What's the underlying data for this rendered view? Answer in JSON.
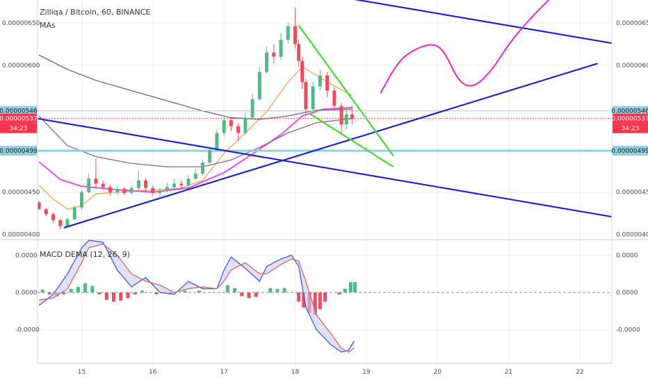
{
  "header": {
    "title": "Zilliqa / Bitcoin, 60, BINANCE",
    "ma_label": "MAs",
    "macd_label": "MACD DEMA (12, 26, 9)"
  },
  "colors": {
    "up": "#53b987",
    "down": "#eb4d5c",
    "trend": "#1d24c9",
    "wedge": "#3ddc2b",
    "projection": "#e81fd2",
    "hline": "#8fd0e3",
    "price_red": "#f2364d",
    "ma_orange": "#f4a04a",
    "ma_pink": "#e84de0",
    "ma_purple": "#8e5ba6",
    "ma_gray": "#666666",
    "macd_line": "#3f5bd8",
    "signal_line": "#e06060"
  },
  "price_axis": {
    "ticks": [
      "0.00000650",
      "0.00000600",
      "0.00000450",
      "0.00000400"
    ],
    "tick_values": [
      6.5e-06,
      6e-06,
      4.5e-06,
      4e-06
    ],
    "range": [
      3.94e-06,
      6.77e-06
    ]
  },
  "labels": {
    "price_546": "0.00000546",
    "price_537": "0.00000537",
    "countdown": "34:23",
    "price_499": "0.00000499"
  },
  "macd_axis": {
    "ticks": [
      "0.0000",
      "0.0000",
      "-0.0000"
    ],
    "tick_values": [
      1,
      0,
      -1
    ],
    "range": [
      -1.9,
      1.4
    ]
  },
  "x_axis": {
    "ticks": [
      "15",
      "16",
      "17",
      "18",
      "19",
      "20",
      "21",
      "22"
    ],
    "tick_values": [
      15,
      16,
      17,
      18,
      19,
      20,
      21,
      22
    ],
    "range": [
      14.38,
      22.45
    ]
  },
  "chart_data": {
    "type": "candlestick",
    "title": "Zilliqa / Bitcoin, 60, BINANCE",
    "x_unit": "day",
    "y_range": [
      3.94e-06,
      6.77e-06
    ],
    "candles": [
      [
        14.4,
        4.38,
        4.3,
        4.4,
        4.29
      ],
      [
        14.5,
        4.3,
        4.24,
        4.32,
        4.22
      ],
      [
        14.6,
        4.24,
        4.17,
        4.26,
        4.14
      ],
      [
        14.7,
        4.17,
        4.1,
        4.19,
        4.06
      ],
      [
        14.8,
        4.1,
        4.18,
        4.2,
        4.08
      ],
      [
        14.9,
        4.18,
        4.32,
        4.34,
        4.16
      ],
      [
        15.0,
        4.32,
        4.5,
        4.53,
        4.3
      ],
      [
        15.1,
        4.5,
        4.66,
        4.72,
        4.48
      ],
      [
        15.2,
        4.66,
        4.6,
        4.9,
        4.56
      ],
      [
        15.3,
        4.6,
        4.56,
        4.64,
        4.52
      ],
      [
        15.4,
        4.56,
        4.5,
        4.59,
        4.46
      ],
      [
        15.5,
        4.5,
        4.54,
        4.57,
        4.47
      ],
      [
        15.6,
        4.54,
        4.49,
        4.56,
        4.46
      ],
      [
        15.7,
        4.49,
        4.55,
        4.58,
        4.47
      ],
      [
        15.8,
        4.55,
        4.64,
        4.75,
        4.53
      ],
      [
        15.9,
        4.64,
        4.55,
        4.67,
        4.5
      ],
      [
        16.0,
        4.55,
        4.49,
        4.58,
        4.46
      ],
      [
        16.1,
        4.49,
        4.52,
        4.55,
        4.45
      ],
      [
        16.2,
        4.52,
        4.56,
        4.61,
        4.5
      ],
      [
        16.3,
        4.56,
        4.6,
        4.66,
        4.53
      ],
      [
        16.4,
        4.6,
        4.58,
        4.64,
        4.54
      ],
      [
        16.5,
        4.58,
        4.66,
        4.7,
        4.56
      ],
      [
        16.6,
        4.66,
        4.72,
        4.78,
        4.64
      ],
      [
        16.7,
        4.72,
        4.85,
        4.88,
        4.7
      ],
      [
        16.8,
        4.85,
        5.0,
        5.03,
        4.83
      ],
      [
        16.9,
        5.0,
        5.2,
        5.24,
        4.98
      ],
      [
        17.0,
        5.2,
        5.35,
        5.4,
        5.16
      ],
      [
        17.1,
        5.35,
        5.28,
        5.38,
        5.22
      ],
      [
        17.2,
        5.28,
        5.2,
        5.31,
        5.1
      ],
      [
        17.3,
        5.2,
        5.38,
        5.44,
        5.18
      ],
      [
        17.4,
        5.38,
        5.6,
        5.66,
        5.36
      ],
      [
        17.5,
        5.6,
        5.92,
        5.98,
        5.58
      ],
      [
        17.6,
        5.92,
        6.15,
        6.22,
        5.9
      ],
      [
        17.7,
        6.15,
        6.1,
        6.25,
        6.02
      ],
      [
        17.8,
        6.1,
        6.3,
        6.38,
        6.06
      ],
      [
        17.9,
        6.3,
        6.46,
        6.5,
        6.26
      ],
      [
        18.0,
        6.46,
        6.25,
        6.68,
        6.2
      ],
      [
        18.05,
        6.25,
        6.05,
        6.3,
        5.98
      ],
      [
        18.1,
        6.05,
        5.8,
        6.1,
        5.72
      ],
      [
        18.15,
        5.8,
        5.48,
        5.84,
        5.42
      ],
      [
        18.25,
        5.48,
        5.75,
        5.8,
        5.45
      ],
      [
        18.35,
        5.75,
        5.88,
        5.94,
        5.7
      ],
      [
        18.45,
        5.88,
        5.7,
        5.92,
        5.62
      ],
      [
        18.55,
        5.7,
        5.52,
        5.74,
        5.46
      ],
      [
        18.65,
        5.52,
        5.3,
        5.56,
        5.2
      ],
      [
        18.72,
        5.3,
        5.42,
        5.48,
        5.24
      ],
      [
        18.8,
        5.42,
        5.37,
        5.52,
        5.3
      ]
    ],
    "macd": [
      [
        14.4,
        -0.35,
        -0.2
      ],
      [
        14.6,
        -0.05,
        -0.15
      ],
      [
        14.8,
        0.5,
        0.1
      ],
      [
        15.0,
        1.2,
        0.8
      ],
      [
        15.1,
        1.4,
        1.2
      ],
      [
        15.3,
        1.35,
        1.3
      ],
      [
        15.5,
        0.6,
        1.0
      ],
      [
        15.7,
        0.15,
        0.5
      ],
      [
        15.9,
        0.4,
        0.3
      ],
      [
        16.1,
        0.0,
        0.2
      ],
      [
        16.3,
        -0.05,
        0.0
      ],
      [
        16.5,
        0.3,
        0.1
      ],
      [
        16.7,
        0.1,
        0.15
      ],
      [
        16.9,
        0.1,
        0.1
      ],
      [
        17.0,
        0.6,
        0.3
      ],
      [
        17.1,
        0.95,
        0.6
      ],
      [
        17.3,
        0.65,
        0.8
      ],
      [
        17.5,
        0.3,
        0.5
      ],
      [
        17.6,
        0.7,
        0.5
      ],
      [
        17.8,
        0.9,
        0.75
      ],
      [
        17.95,
        1.0,
        0.9
      ],
      [
        18.05,
        0.7,
        0.85
      ],
      [
        18.15,
        -0.4,
        0.3
      ],
      [
        18.3,
        -1.0,
        -0.6
      ],
      [
        18.5,
        -1.4,
        -1.1
      ],
      [
        18.65,
        -1.6,
        -1.5
      ],
      [
        18.75,
        -1.55,
        -1.6
      ],
      [
        18.83,
        -1.3,
        -1.5
      ]
    ],
    "histogram": [
      [
        14.45,
        0.08
      ],
      [
        14.55,
        -0.05
      ],
      [
        14.65,
        -0.1
      ],
      [
        14.75,
        -0.05
      ],
      [
        14.85,
        0.1
      ],
      [
        14.95,
        0.15
      ],
      [
        15.05,
        0.25
      ],
      [
        15.15,
        0.18
      ],
      [
        15.25,
        -0.05
      ],
      [
        15.35,
        -0.2
      ],
      [
        15.45,
        -0.25
      ],
      [
        15.55,
        -0.22
      ],
      [
        15.65,
        -0.15
      ],
      [
        15.75,
        -0.05
      ],
      [
        15.85,
        0.05
      ],
      [
        16.05,
        -0.05
      ],
      [
        16.25,
        -0.05
      ],
      [
        16.45,
        0.05
      ],
      [
        16.65,
        0.05
      ],
      [
        17.05,
        0.2
      ],
      [
        17.15,
        0.12
      ],
      [
        17.25,
        -0.1
      ],
      [
        17.35,
        -0.15
      ],
      [
        17.45,
        -0.12
      ],
      [
        17.65,
        0.12
      ],
      [
        17.75,
        0.1
      ],
      [
        17.85,
        0.12
      ],
      [
        18.05,
        -0.25
      ],
      [
        18.12,
        -0.4
      ],
      [
        18.2,
        -0.55
      ],
      [
        18.28,
        -0.6
      ],
      [
        18.35,
        -0.45
      ],
      [
        18.42,
        -0.25
      ],
      [
        18.62,
        -0.05
      ],
      [
        18.7,
        0.1
      ],
      [
        18.78,
        0.28
      ],
      [
        18.84,
        0.28
      ]
    ],
    "moving_averages": [
      {
        "color_key": "ma_orange",
        "points": [
          [
            14.4,
            4.58
          ],
          [
            14.6,
            4.42
          ],
          [
            14.8,
            4.3
          ],
          [
            15.0,
            4.34
          ],
          [
            15.2,
            4.48
          ],
          [
            15.5,
            4.5
          ],
          [
            15.8,
            4.52
          ],
          [
            16.1,
            4.53
          ],
          [
            16.4,
            4.55
          ],
          [
            16.7,
            4.64
          ],
          [
            17.0,
            4.96
          ],
          [
            17.3,
            5.2
          ],
          [
            17.6,
            5.45
          ],
          [
            17.9,
            5.8
          ],
          [
            18.1,
            5.98
          ],
          [
            18.3,
            5.88
          ],
          [
            18.5,
            5.78
          ],
          [
            18.8,
            5.64
          ]
        ]
      },
      {
        "color_key": "ma_pink",
        "points": [
          [
            14.4,
            4.86
          ],
          [
            14.7,
            4.65
          ],
          [
            15.0,
            4.57
          ],
          [
            15.5,
            4.53
          ],
          [
            16.0,
            4.5
          ],
          [
            16.5,
            4.55
          ],
          [
            17.0,
            4.73
          ],
          [
            17.4,
            4.95
          ],
          [
            17.8,
            5.18
          ],
          [
            18.1,
            5.4
          ],
          [
            18.4,
            5.48
          ],
          [
            18.8,
            5.5
          ]
        ]
      },
      {
        "color_key": "ma_purple",
        "points": [
          [
            14.4,
            5.4
          ],
          [
            14.8,
            5.05
          ],
          [
            15.2,
            4.92
          ],
          [
            15.7,
            4.84
          ],
          [
            16.2,
            4.8
          ],
          [
            16.7,
            4.8
          ],
          [
            17.1,
            4.88
          ],
          [
            17.5,
            5.03
          ],
          [
            17.9,
            5.2
          ],
          [
            18.3,
            5.32
          ],
          [
            18.8,
            5.37
          ]
        ]
      },
      {
        "color_key": "ma_gray",
        "points": [
          [
            14.4,
            6.12
          ],
          [
            14.8,
            5.95
          ],
          [
            15.2,
            5.82
          ],
          [
            15.7,
            5.7
          ],
          [
            16.2,
            5.58
          ],
          [
            16.7,
            5.46
          ],
          [
            17.1,
            5.38
          ],
          [
            17.5,
            5.36
          ],
          [
            17.9,
            5.4
          ],
          [
            18.3,
            5.47
          ],
          [
            18.8,
            5.48
          ]
        ]
      }
    ],
    "horizontal_lines": [
      {
        "value": 5.46,
        "color_key": "hline",
        "width": 1
      },
      {
        "value": 5.37,
        "color_key": "price_red",
        "width": 1,
        "dash": true
      },
      {
        "value": 4.99,
        "color_key": "hline",
        "width": 3
      }
    ],
    "trend_lines": [
      {
        "color_key": "trend",
        "points": [
          [
            14.38,
            5.37
          ],
          [
            22.45,
            4.21
          ]
        ]
      },
      {
        "color_key": "trend",
        "points": [
          [
            14.75,
            4.08
          ],
          [
            22.25,
            6.02
          ]
        ]
      },
      {
        "color_key": "trend",
        "points": [
          [
            18.82,
            6.78
          ],
          [
            22.45,
            6.26
          ]
        ]
      },
      {
        "color_key": "wedge",
        "points": [
          [
            18.05,
            6.47
          ],
          [
            19.38,
            4.93
          ]
        ]
      },
      {
        "color_key": "wedge",
        "points": [
          [
            18.2,
            5.43
          ],
          [
            19.38,
            4.8
          ]
        ]
      }
    ],
    "projection": [
      [
        19.2,
        5.67
      ],
      [
        19.45,
        6.05
      ],
      [
        19.7,
        6.2
      ],
      [
        19.95,
        6.26
      ],
      [
        20.1,
        6.16
      ],
      [
        20.3,
        5.8
      ],
      [
        20.5,
        5.73
      ],
      [
        20.75,
        5.92
      ],
      [
        21.0,
        6.25
      ],
      [
        21.3,
        6.55
      ],
      [
        21.6,
        6.8
      ]
    ]
  }
}
